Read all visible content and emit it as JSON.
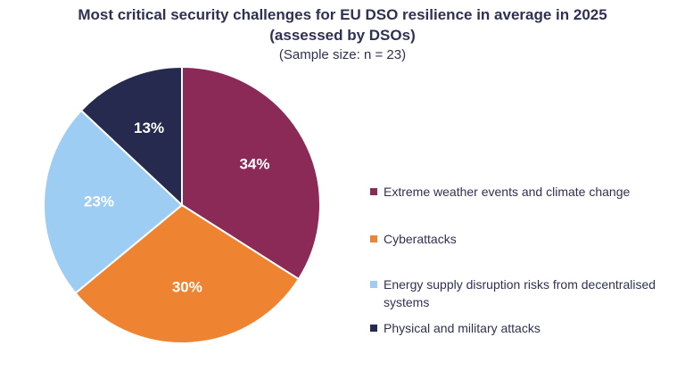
{
  "chart_data": {
    "type": "pie",
    "title_line1": "Most critical security challenges for EU DSO resilience in average in 2025",
    "title_line2": "(assessed by DSOs)",
    "subtitle": "(Sample size: n = 23)",
    "slices": [
      {
        "label": "Extreme weather events and climate change",
        "value": 34,
        "display": "34%",
        "color": "#8b2a57"
      },
      {
        "label": "Cyberattacks",
        "value": 30,
        "display": "30%",
        "color": "#ee8331"
      },
      {
        "label": "Energy supply disruption risks from decentralised systems",
        "value": 23,
        "display": "23%",
        "color": "#9dcdf2"
      },
      {
        "label": "Physical and military attacks",
        "value": 13,
        "display": "13%",
        "color": "#262a4e"
      }
    ],
    "legend_placement": "right"
  }
}
